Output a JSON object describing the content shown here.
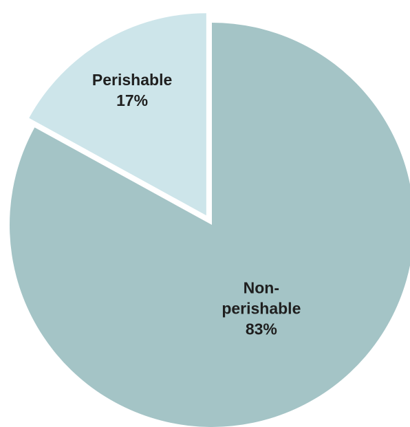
{
  "chart_data": {
    "type": "pie",
    "title": "",
    "slices": [
      {
        "label_lines": [
          "Non-",
          "perishable"
        ],
        "value": 83,
        "value_label": "83%",
        "color": "#a4c4c6"
      },
      {
        "label_lines": [
          "Perishable"
        ],
        "value": 17,
        "value_label": "17%",
        "color": "#cde5ea",
        "exploded": true
      }
    ],
    "start_angle": "12 o'clock",
    "direction": "clockwise",
    "legend": "none"
  }
}
